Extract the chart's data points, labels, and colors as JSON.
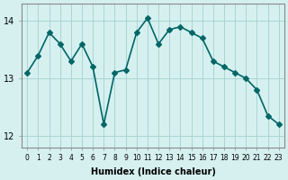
{
  "x": [
    0,
    1,
    2,
    3,
    4,
    5,
    6,
    7,
    8,
    9,
    10,
    11,
    12,
    13,
    14,
    15,
    16,
    17,
    18,
    19,
    20,
    21,
    22,
    23
  ],
  "y": [
    13.1,
    13.4,
    13.8,
    13.6,
    13.3,
    13.6,
    13.2,
    12.2,
    13.1,
    13.15,
    13.8,
    14.05,
    13.6,
    13.85,
    13.9,
    13.8,
    13.7,
    13.3,
    13.2,
    13.1,
    13.0,
    12.8,
    12.35,
    12.2
  ],
  "xlabel": "Humidex (Indice chaleur)",
  "ylabel": "",
  "ylim": [
    11.8,
    14.3
  ],
  "yticks": [
    12,
    13,
    14
  ],
  "xlim": [
    -0.5,
    23.5
  ],
  "bg_color": "#d6f0f0",
  "grid_color": "#aad4d4",
  "line_color": "#006666",
  "marker": "D",
  "markersize": 3,
  "linewidth": 1.2
}
